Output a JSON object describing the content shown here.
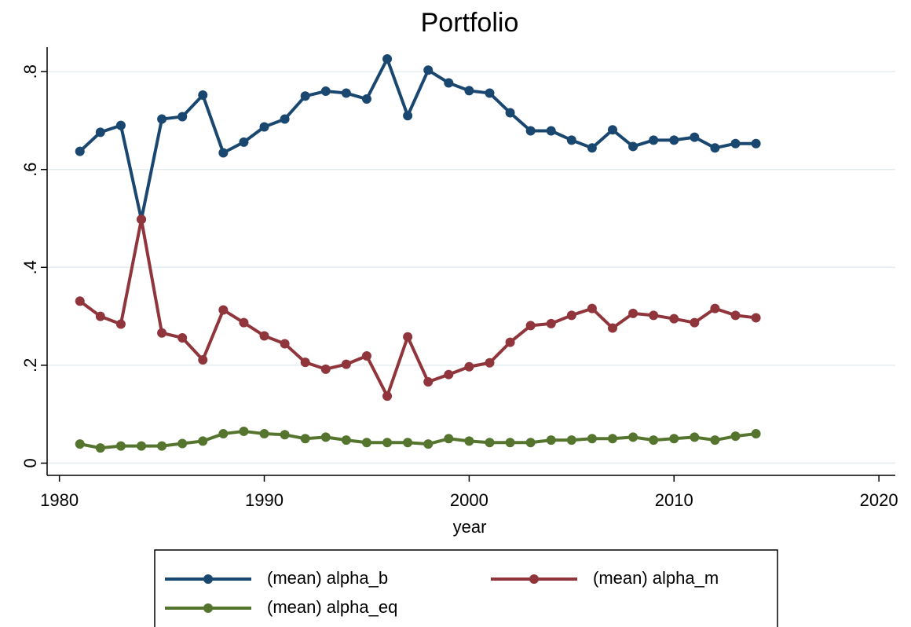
{
  "chart_data": {
    "type": "line",
    "title": "Portfolio",
    "x_label": "year",
    "x": [
      1981,
      1982,
      1983,
      1984,
      1985,
      1986,
      1987,
      1988,
      1989,
      1990,
      1991,
      1992,
      1993,
      1994,
      1995,
      1996,
      1997,
      1998,
      1999,
      2000,
      2001,
      2002,
      2003,
      2004,
      2005,
      2006,
      2007,
      2008,
      2009,
      2010,
      2011,
      2012,
      2013,
      2014
    ],
    "series": [
      {
        "name": "(mean) alpha_b",
        "color": "#1a476f",
        "values": [
          0.637,
          0.676,
          0.69,
          0.498,
          0.703,
          0.708,
          0.752,
          0.634,
          0.656,
          0.687,
          0.703,
          0.75,
          0.76,
          0.756,
          0.744,
          0.826,
          0.71,
          0.803,
          0.777,
          0.761,
          0.756,
          0.716,
          0.679,
          0.679,
          0.66,
          0.644,
          0.681,
          0.647,
          0.66,
          0.66,
          0.666,
          0.644,
          0.653,
          0.653
        ]
      },
      {
        "name": "(mean) alpha_m",
        "color": "#90353b",
        "values": [
          0.331,
          0.3,
          0.284,
          0.498,
          0.266,
          0.256,
          0.211,
          0.313,
          0.287,
          0.26,
          0.244,
          0.206,
          0.192,
          0.202,
          0.219,
          0.137,
          0.258,
          0.166,
          0.181,
          0.197,
          0.205,
          0.247,
          0.281,
          0.285,
          0.302,
          0.316,
          0.276,
          0.306,
          0.302,
          0.295,
          0.287,
          0.316,
          0.302,
          0.297
        ]
      },
      {
        "name": "(mean) alpha_eq",
        "color": "#55752f",
        "values": [
          0.039,
          0.031,
          0.035,
          0.035,
          0.035,
          0.04,
          0.045,
          0.06,
          0.065,
          0.06,
          0.058,
          0.05,
          0.053,
          0.047,
          0.042,
          0.042,
          0.042,
          0.039,
          0.05,
          0.045,
          0.042,
          0.042,
          0.042,
          0.047,
          0.047,
          0.05,
          0.05,
          0.053,
          0.047,
          0.05,
          0.053,
          0.047,
          0.055,
          0.06
        ]
      }
    ],
    "xlim": [
      1979.4,
      2020.8
    ],
    "xticks": [
      1980,
      1990,
      2000,
      2010,
      2020
    ],
    "ylim": [
      -0.025,
      0.85
    ],
    "yticks": [
      0,
      {
        "value": 0.2,
        "label": ".2"
      },
      {
        "value": 0.4,
        "label": ".4"
      },
      {
        "value": 0.6,
        "label": ".6"
      },
      {
        "value": 0.8,
        "label": ".8"
      }
    ],
    "grid": true
  }
}
